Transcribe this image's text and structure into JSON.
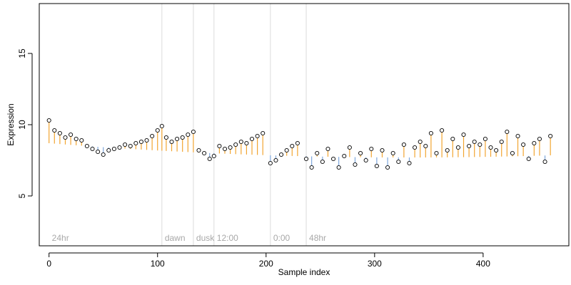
{
  "chart_data": {
    "type": "scatter",
    "xlabel": "Sample index",
    "ylabel": "Expression",
    "xlim": [
      -9,
      479
    ],
    "ylim": [
      1.5,
      18.5
    ],
    "x_ticks": [
      0,
      100,
      200,
      300,
      400
    ],
    "y_ticks": [
      5,
      10,
      15
    ],
    "grid": false,
    "phase_markers": [
      {
        "x": 0,
        "label": "24hr"
      },
      {
        "x": 104,
        "label": "dawn"
      },
      {
        "x": 133,
        "label": "dusk"
      },
      {
        "x": 152,
        "label": "12:00"
      },
      {
        "x": 204,
        "label": "0:00"
      },
      {
        "x": 237,
        "label": "48hr"
      }
    ],
    "colors": {
      "point_fill": "#ffffff",
      "point_stroke": "#000000",
      "above_fit": "#f2a531",
      "below_fit": "#7ea7dc",
      "phase_line": "#dcdcdc",
      "phase_label": "#a8a8a8"
    },
    "series": [
      {
        "x": [
          0,
          5,
          10,
          15,
          20,
          25,
          30,
          35,
          40,
          45,
          50,
          55,
          60,
          65,
          70,
          75,
          80,
          85,
          90,
          95,
          100,
          104,
          108,
          113,
          118,
          123,
          128,
          133,
          138,
          143,
          148,
          152,
          157,
          162,
          167,
          172,
          177,
          182,
          187,
          192,
          197,
          204,
          209,
          214,
          219,
          224,
          229,
          237,
          242,
          247,
          252,
          257,
          262,
          267,
          272,
          277,
          282,
          287,
          292,
          297,
          302,
          307,
          312,
          317,
          322,
          327,
          332,
          337,
          342,
          347,
          352,
          357,
          362,
          367,
          372,
          377,
          382,
          387,
          392,
          397,
          402,
          407,
          412,
          417,
          422,
          427,
          432,
          437,
          442,
          447,
          452,
          457,
          462
        ],
        "y": [
          10.3,
          9.6,
          9.4,
          9.1,
          9.3,
          9.0,
          8.9,
          8.5,
          8.3,
          8.1,
          7.9,
          8.2,
          8.3,
          8.4,
          8.6,
          8.5,
          8.7,
          8.8,
          8.9,
          9.2,
          9.6,
          9.9,
          9.1,
          8.8,
          9.0,
          9.1,
          9.3,
          9.5,
          8.2,
          8.0,
          7.6,
          7.8,
          8.5,
          8.3,
          8.4,
          8.6,
          8.8,
          8.7,
          9.0,
          9.2,
          9.4,
          7.3,
          7.5,
          7.9,
          8.2,
          8.5,
          8.7,
          7.6,
          7.0,
          8.0,
          7.4,
          8.3,
          7.6,
          7.0,
          7.8,
          8.4,
          7.2,
          8.0,
          7.5,
          8.3,
          7.1,
          8.2,
          7.0,
          8.0,
          7.4,
          8.6,
          7.3,
          8.4,
          8.8,
          8.5,
          9.4,
          8.0,
          9.6,
          8.2,
          9.0,
          8.4,
          9.3,
          8.5,
          8.8,
          8.6,
          9.0,
          8.4,
          8.2,
          8.8,
          9.5,
          8.0,
          9.2,
          8.6,
          7.6,
          8.7,
          9.0,
          7.4,
          9.2
        ]
      }
    ]
  }
}
